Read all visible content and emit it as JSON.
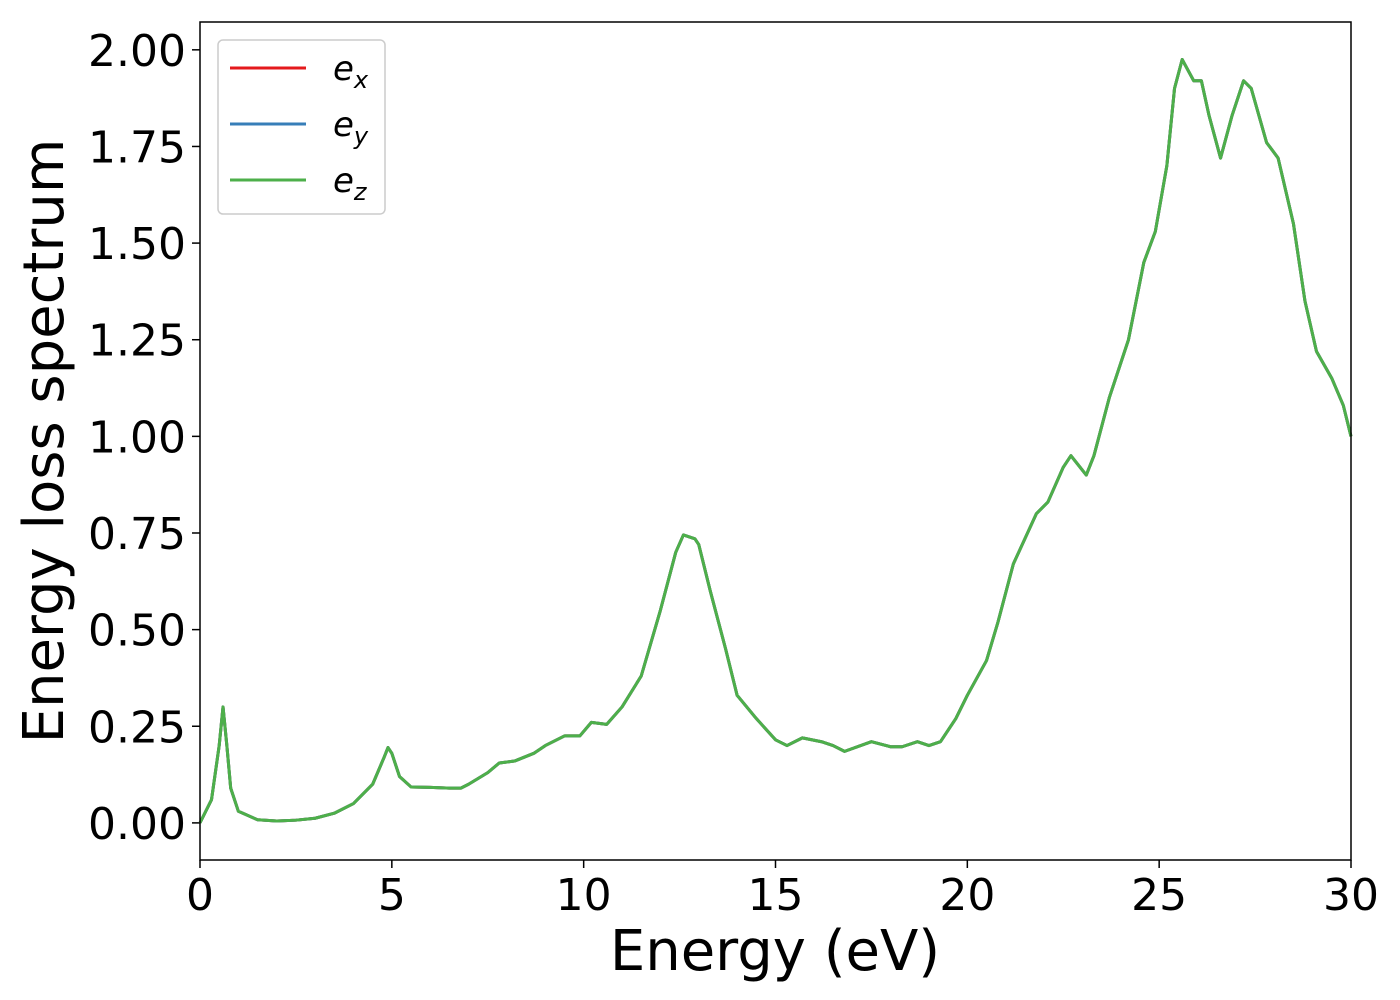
{
  "chart_data": {
    "type": "line",
    "xlabel": "Energy (eV)",
    "ylabel": "Energy loss spectrum",
    "x": [
      0,
      0.3,
      0.5,
      0.6,
      0.7,
      0.8,
      1.0,
      1.5,
      2.0,
      2.5,
      3.0,
      3.5,
      4.0,
      4.5,
      4.8,
      4.9,
      5.0,
      5.2,
      5.5,
      6.0,
      6.5,
      6.8,
      7.0,
      7.5,
      7.8,
      8.2,
      8.7,
      9.0,
      9.5,
      9.9,
      10.2,
      10.6,
      11.0,
      11.5,
      12.0,
      12.4,
      12.6,
      12.9,
      13.0,
      13.3,
      13.7,
      14.0,
      14.5,
      15.0,
      15.3,
      15.7,
      16.2,
      16.5,
      16.8,
      17.5,
      18.0,
      18.3,
      18.7,
      19.0,
      19.3,
      19.7,
      20.0,
      20.5,
      20.8,
      21.2,
      21.8,
      22.1,
      22.5,
      22.7,
      23.1,
      23.3,
      23.7,
      24.2,
      24.6,
      24.9,
      25.2,
      25.4,
      25.6,
      25.9,
      26.1,
      26.3,
      26.6,
      26.9,
      27.2,
      27.4,
      27.8,
      28.1,
      28.5,
      28.8,
      29.1,
      29.5,
      29.8,
      30.0
    ],
    "series": [
      {
        "name": "ex",
        "color": "#e41a1c",
        "values": [
          0.0,
          0.06,
          0.2,
          0.3,
          0.2,
          0.09,
          0.03,
          0.008,
          0.005,
          0.007,
          0.012,
          0.025,
          0.05,
          0.1,
          0.17,
          0.195,
          0.18,
          0.12,
          0.093,
          0.092,
          0.09,
          0.09,
          0.1,
          0.13,
          0.155,
          0.16,
          0.18,
          0.2,
          0.225,
          0.225,
          0.26,
          0.255,
          0.3,
          0.38,
          0.55,
          0.7,
          0.745,
          0.735,
          0.72,
          0.6,
          0.45,
          0.33,
          0.27,
          0.215,
          0.2,
          0.22,
          0.21,
          0.2,
          0.185,
          0.21,
          0.197,
          0.197,
          0.21,
          0.2,
          0.21,
          0.27,
          0.33,
          0.42,
          0.52,
          0.67,
          0.8,
          0.83,
          0.92,
          0.95,
          0.9,
          0.95,
          1.1,
          1.25,
          1.45,
          1.53,
          1.7,
          1.9,
          1.975,
          1.92,
          1.92,
          1.83,
          1.72,
          1.83,
          1.92,
          1.9,
          1.76,
          1.72,
          1.55,
          1.35,
          1.22,
          1.15,
          1.08,
          1.0
        ]
      },
      {
        "name": "ey",
        "color": "#377eb8",
        "values": [
          0.0,
          0.06,
          0.2,
          0.3,
          0.2,
          0.09,
          0.03,
          0.008,
          0.005,
          0.007,
          0.012,
          0.025,
          0.05,
          0.1,
          0.17,
          0.195,
          0.18,
          0.12,
          0.093,
          0.092,
          0.09,
          0.09,
          0.1,
          0.13,
          0.155,
          0.16,
          0.18,
          0.2,
          0.225,
          0.225,
          0.26,
          0.255,
          0.3,
          0.38,
          0.55,
          0.7,
          0.745,
          0.735,
          0.72,
          0.6,
          0.45,
          0.33,
          0.27,
          0.215,
          0.2,
          0.22,
          0.21,
          0.2,
          0.185,
          0.21,
          0.197,
          0.197,
          0.21,
          0.2,
          0.21,
          0.27,
          0.33,
          0.42,
          0.52,
          0.67,
          0.8,
          0.83,
          0.92,
          0.95,
          0.9,
          0.95,
          1.1,
          1.25,
          1.45,
          1.53,
          1.7,
          1.9,
          1.975,
          1.92,
          1.92,
          1.83,
          1.72,
          1.83,
          1.92,
          1.9,
          1.76,
          1.72,
          1.55,
          1.35,
          1.22,
          1.15,
          1.08,
          1.0
        ]
      },
      {
        "name": "ez",
        "color": "#4daf4a",
        "values": [
          0.0,
          0.06,
          0.2,
          0.3,
          0.2,
          0.09,
          0.03,
          0.008,
          0.005,
          0.007,
          0.012,
          0.025,
          0.05,
          0.1,
          0.17,
          0.195,
          0.18,
          0.12,
          0.093,
          0.092,
          0.09,
          0.09,
          0.1,
          0.13,
          0.155,
          0.16,
          0.18,
          0.2,
          0.225,
          0.225,
          0.26,
          0.255,
          0.3,
          0.38,
          0.55,
          0.7,
          0.745,
          0.735,
          0.72,
          0.6,
          0.45,
          0.33,
          0.27,
          0.215,
          0.2,
          0.22,
          0.21,
          0.2,
          0.185,
          0.21,
          0.197,
          0.197,
          0.21,
          0.2,
          0.21,
          0.27,
          0.33,
          0.42,
          0.52,
          0.67,
          0.8,
          0.83,
          0.92,
          0.95,
          0.9,
          0.95,
          1.1,
          1.25,
          1.45,
          1.53,
          1.7,
          1.9,
          1.975,
          1.92,
          1.92,
          1.83,
          1.72,
          1.83,
          1.92,
          1.9,
          1.76,
          1.72,
          1.55,
          1.35,
          1.22,
          1.15,
          1.08,
          1.0
        ]
      }
    ],
    "xlim": [
      0,
      30
    ],
    "xticks": [
      0,
      5,
      10,
      15,
      20,
      25,
      30
    ],
    "ylim": [
      -0.096,
      2.072
    ],
    "yticks": [
      {
        "value": 0,
        "label": "0.00"
      },
      {
        "value": 0.25,
        "label": "0.25"
      },
      {
        "value": 0.5,
        "label": "0.50"
      },
      {
        "value": 0.75,
        "label": "0.75"
      },
      {
        "value": 1,
        "label": "1.00"
      },
      {
        "value": 1.25,
        "label": "1.25"
      },
      {
        "value": 1.5,
        "label": "1.50"
      },
      {
        "value": 1.75,
        "label": "1.75"
      },
      {
        "value": 2,
        "label": "2.00"
      }
    ],
    "legend": "upper left",
    "grid": false
  }
}
